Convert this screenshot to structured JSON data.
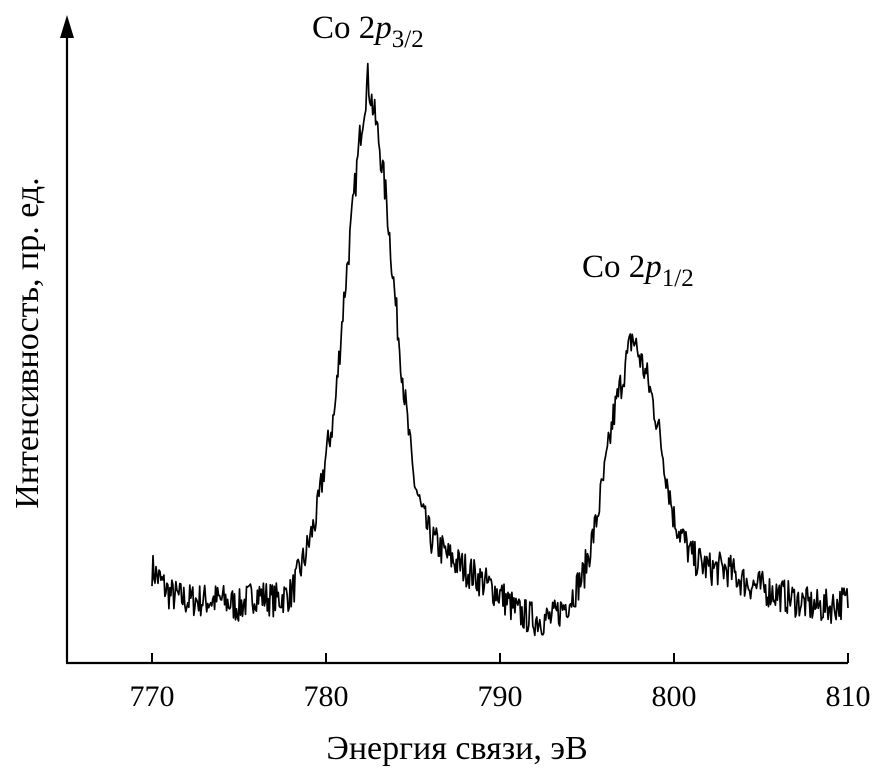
{
  "chart_data": {
    "type": "line",
    "xlabel": "Энергия связи, эВ",
    "ylabel": "Интенсивность, пр. ед.",
    "xlim": [
      765,
      810
    ],
    "ylim": [
      0,
      1.0
    ],
    "x_ticks": [
      770,
      780,
      790,
      800,
      810
    ],
    "grid": false,
    "annotations": [
      {
        "text_main": "Co 2",
        "text_italic": "p",
        "text_sub": "3/2",
        "x": 782.4,
        "y": 0.92
      },
      {
        "text_main": "Co 2",
        "text_italic": "p",
        "text_sub": "1/2",
        "x": 797.6,
        "y": 0.58
      }
    ],
    "series": [
      {
        "values_x": [
          770.0,
          771.0,
          772.0,
          773.0,
          774.0,
          775.0,
          776.0,
          777.0,
          778.0,
          778.8,
          779.5,
          780.0,
          780.5,
          781.0,
          781.5,
          782.0,
          782.4,
          783.0,
          783.5,
          784.0,
          784.5,
          785.0,
          785.5,
          786.0,
          787.0,
          788.0,
          789.0,
          790.0,
          791.0,
          792.0,
          793.0,
          794.0,
          794.8,
          795.5,
          796.0,
          796.5,
          797.0,
          797.6,
          798.0,
          798.5,
          799.0,
          799.5,
          800.0,
          801.0,
          802.0,
          803.0,
          804.0,
          805.0,
          806.0,
          807.0,
          808.0,
          809.0,
          810.0
        ],
        "values_y": [
          0.15,
          0.11,
          0.1,
          0.1,
          0.1,
          0.09,
          0.11,
          0.1,
          0.11,
          0.17,
          0.24,
          0.33,
          0.4,
          0.57,
          0.71,
          0.85,
          0.93,
          0.84,
          0.73,
          0.57,
          0.43,
          0.3,
          0.24,
          0.2,
          0.17,
          0.15,
          0.13,
          0.11,
          0.08,
          0.07,
          0.07,
          0.1,
          0.14,
          0.22,
          0.3,
          0.39,
          0.45,
          0.52,
          0.49,
          0.45,
          0.39,
          0.31,
          0.23,
          0.17,
          0.15,
          0.15,
          0.13,
          0.12,
          0.11,
          0.1,
          0.09,
          0.09,
          0.1
        ]
      }
    ]
  }
}
